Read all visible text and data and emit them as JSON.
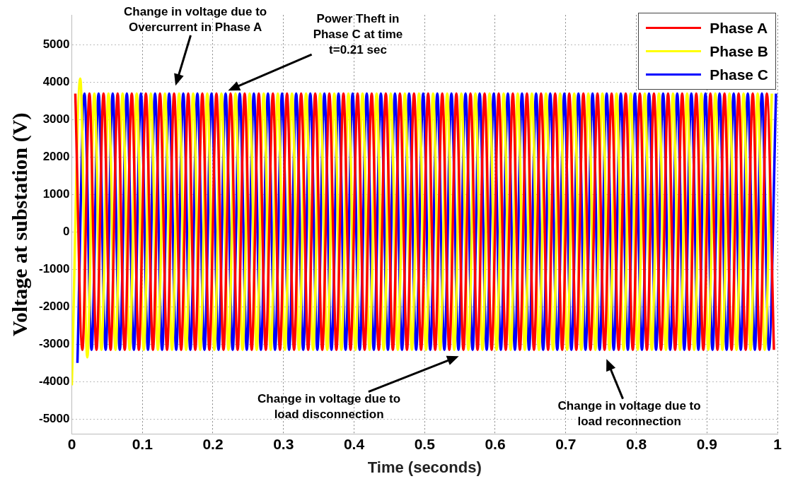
{
  "chart_data": {
    "type": "line",
    "xlabel": "Time (seconds)",
    "ylabel": "Voltage at substation (V)",
    "xlim": [
      0,
      1
    ],
    "xticks": [
      0,
      0.1,
      0.2,
      0.3,
      0.4,
      0.5,
      0.6,
      0.7,
      0.8,
      0.9,
      1
    ],
    "ylim": [
      -5400,
      5800
    ],
    "yticks": [
      -5000,
      -4000,
      -3000,
      -2000,
      -1000,
      0,
      1000,
      2000,
      3000,
      4000,
      5000
    ],
    "grid": true,
    "legend": "top right",
    "marker": "none",
    "line_style": "solid",
    "annotations": [
      "Change in voltage due to Overcurrent in Phase A",
      "Power Theft in Phase C at time t=0.21 sec",
      "Change in voltage due to load disconnection",
      "Change in voltage due to load reconnection"
    ],
    "series": [
      {
        "name": "Phase A",
        "color": "#ff0000",
        "x": [
          0.005,
          0.015,
          0.025,
          0.035,
          0.045,
          0.055,
          0.065,
          0.075,
          0.085,
          0.095,
          0.105,
          0.115,
          0.125,
          0.135,
          0.145,
          0.155,
          0.165,
          0.175,
          0.185,
          0.195,
          0.205,
          0.215,
          0.225,
          0.235,
          0.245,
          0.255,
          0.265,
          0.275,
          0.285,
          0.295,
          0.305,
          0.315,
          0.325,
          0.335,
          0.345,
          0.355,
          0.365,
          0.375,
          0.385,
          0.395,
          0.405,
          0.415,
          0.425,
          0.435,
          0.445,
          0.455,
          0.465,
          0.475,
          0.485,
          0.495,
          0.505,
          0.515,
          0.525,
          0.535,
          0.545,
          0.555,
          0.565,
          0.575,
          0.585,
          0.595,
          0.605,
          0.615,
          0.625,
          0.635,
          0.645,
          0.655,
          0.665,
          0.675,
          0.685,
          0.695,
          0.705,
          0.715,
          0.725,
          0.735,
          0.745,
          0.755,
          0.765,
          0.775,
          0.785,
          0.795,
          0.805,
          0.815,
          0.825,
          0.835,
          0.845,
          0.855,
          0.865,
          0.875,
          0.885,
          0.895,
          0.905,
          0.915,
          0.925,
          0.935,
          0.945,
          0.955,
          0.965,
          0.975,
          0.985,
          0.995
        ],
        "values": [
          3700,
          -3150,
          3700,
          -3150,
          3700,
          -3150,
          3700,
          -3150,
          3700,
          -3150,
          3700,
          -3150,
          3700,
          -3150,
          3700,
          -3150,
          3700,
          -3150,
          3700,
          -3150,
          3700,
          -3150,
          3700,
          -3150,
          3700,
          -3150,
          3700,
          -3150,
          3700,
          -3150,
          3700,
          -3150,
          3700,
          -3150,
          3700,
          -3150,
          3700,
          -3150,
          3700,
          -3150,
          3700,
          -3150,
          3700,
          -3150,
          3700,
          -3150,
          3700,
          -3150,
          3700,
          -3150,
          3700,
          -3150,
          3700,
          -3150,
          3700,
          -3150,
          3700,
          -3150,
          3700,
          -3150,
          3700,
          -3150,
          3700,
          -3150,
          3700,
          -3150,
          3700,
          -3150,
          3700,
          -3150,
          3700,
          -3150,
          3700,
          -3150,
          3700,
          -3150,
          3700,
          -3150,
          3700,
          -3150,
          3700,
          -3150,
          3700,
          -3150,
          3700,
          -3150,
          3700,
          -3150,
          3700,
          -3150,
          3700,
          -3150,
          3700,
          -3150,
          3700,
          -3150,
          3700,
          -3150,
          3700,
          -3150
        ]
      },
      {
        "name": "Phase B",
        "color": "#ffff00",
        "x": [
          0,
          0.012,
          0.022,
          0.032,
          0.042,
          0.052,
          0.062,
          0.072,
          0.082,
          0.092,
          0.102,
          0.112,
          0.122,
          0.132,
          0.142,
          0.152,
          0.162,
          0.172,
          0.182,
          0.192,
          0.202,
          0.212,
          0.222,
          0.232,
          0.242,
          0.252,
          0.262,
          0.272,
          0.282,
          0.292,
          0.302,
          0.312,
          0.322,
          0.332,
          0.342,
          0.352,
          0.362,
          0.372,
          0.382,
          0.392,
          0.402,
          0.412,
          0.422,
          0.432,
          0.442,
          0.452,
          0.462,
          0.472,
          0.482,
          0.492,
          0.502,
          0.512,
          0.522,
          0.532,
          0.542,
          0.552,
          0.562,
          0.572,
          0.582,
          0.592,
          0.602,
          0.612,
          0.622,
          0.632,
          0.642,
          0.652,
          0.662,
          0.672,
          0.682,
          0.692,
          0.702,
          0.712,
          0.722,
          0.732,
          0.742,
          0.752,
          0.762,
          0.772,
          0.782,
          0.792,
          0.802,
          0.812,
          0.822,
          0.832,
          0.842,
          0.852,
          0.862,
          0.872,
          0.882,
          0.892,
          0.902,
          0.912,
          0.922,
          0.932,
          0.942,
          0.952,
          0.962,
          0.972,
          0.982,
          0.992
        ],
        "values": [
          -4100,
          4100,
          -3350,
          3700,
          -3150,
          3700,
          -3150,
          3700,
          -3150,
          3700,
          -3150,
          3700,
          -3150,
          3700,
          -3150,
          3700,
          -3150,
          3700,
          -3150,
          3700,
          -3150,
          3700,
          -3150,
          3700,
          -3150,
          3700,
          -3150,
          3700,
          -3150,
          3700,
          -3150,
          3700,
          -3150,
          3700,
          -3150,
          3700,
          -3150,
          3700,
          -3150,
          3700,
          -3150,
          3700,
          -3150,
          3700,
          -3150,
          3700,
          -3150,
          3700,
          -3150,
          3700,
          -3150,
          3700,
          -3150,
          3700,
          -3150,
          3700,
          -3150,
          3700,
          -3150,
          3700,
          -3150,
          3700,
          -3150,
          3700,
          -3150,
          3700,
          -3150,
          3700,
          -3150,
          3700,
          -3150,
          3700,
          -3150,
          3700,
          -3150,
          3700,
          -3150,
          3700,
          -3150,
          3700,
          -3150,
          3700,
          -3150,
          3700,
          -3150,
          3700,
          -3150,
          3700,
          -3150,
          3700,
          -3150,
          3700,
          -3150,
          3700,
          -3150,
          3700,
          -3150,
          3700,
          -3150,
          3700
        ]
      },
      {
        "name": "Phase C",
        "color": "#0000ff",
        "x": [
          0.008,
          0.018,
          0.028,
          0.038,
          0.048,
          0.058,
          0.068,
          0.078,
          0.088,
          0.098,
          0.108,
          0.118,
          0.128,
          0.138,
          0.148,
          0.158,
          0.168,
          0.178,
          0.188,
          0.198,
          0.208,
          0.218,
          0.228,
          0.238,
          0.248,
          0.258,
          0.268,
          0.278,
          0.288,
          0.298,
          0.308,
          0.318,
          0.328,
          0.338,
          0.348,
          0.358,
          0.368,
          0.378,
          0.388,
          0.398,
          0.408,
          0.418,
          0.428,
          0.438,
          0.448,
          0.458,
          0.468,
          0.478,
          0.488,
          0.498,
          0.508,
          0.518,
          0.528,
          0.538,
          0.548,
          0.558,
          0.568,
          0.578,
          0.588,
          0.598,
          0.608,
          0.618,
          0.628,
          0.638,
          0.648,
          0.658,
          0.668,
          0.678,
          0.688,
          0.698,
          0.708,
          0.718,
          0.728,
          0.738,
          0.748,
          0.758,
          0.768,
          0.778,
          0.788,
          0.798,
          0.808,
          0.818,
          0.828,
          0.838,
          0.848,
          0.858,
          0.868,
          0.878,
          0.888,
          0.898,
          0.908,
          0.918,
          0.928,
          0.938,
          0.948,
          0.958,
          0.968,
          0.978,
          0.988,
          0.998
        ],
        "values": [
          -3500,
          3700,
          -3150,
          3700,
          -3150,
          3700,
          -3150,
          3700,
          -3150,
          3700,
          -3150,
          3700,
          -3150,
          3700,
          -3150,
          3700,
          -3150,
          3700,
          -3150,
          3700,
          -3150,
          3700,
          -3150,
          3700,
          -3150,
          3700,
          -3150,
          3700,
          -3150,
          3700,
          -3150,
          3700,
          -3150,
          3700,
          -3150,
          3700,
          -3150,
          3700,
          -3150,
          3700,
          -3150,
          3700,
          -3150,
          3700,
          -3150,
          3700,
          -3150,
          3700,
          -3150,
          3700,
          -3150,
          3700,
          -3150,
          3700,
          -3150,
          3700,
          -3150,
          3700,
          -3150,
          3700,
          -3150,
          3700,
          -3150,
          3700,
          -3150,
          3700,
          -3150,
          3700,
          -3150,
          3700,
          -3150,
          3700,
          -3150,
          3700,
          -3150,
          3700,
          -3150,
          3700,
          -3150,
          3700,
          -3150,
          3700,
          -3150,
          3700,
          -3150,
          3700,
          -3150,
          3700,
          -3150,
          3700,
          -3150,
          3700,
          -3150,
          3700,
          -3150,
          3700,
          -3150,
          3700,
          -3150,
          3700
        ]
      }
    ]
  }
}
